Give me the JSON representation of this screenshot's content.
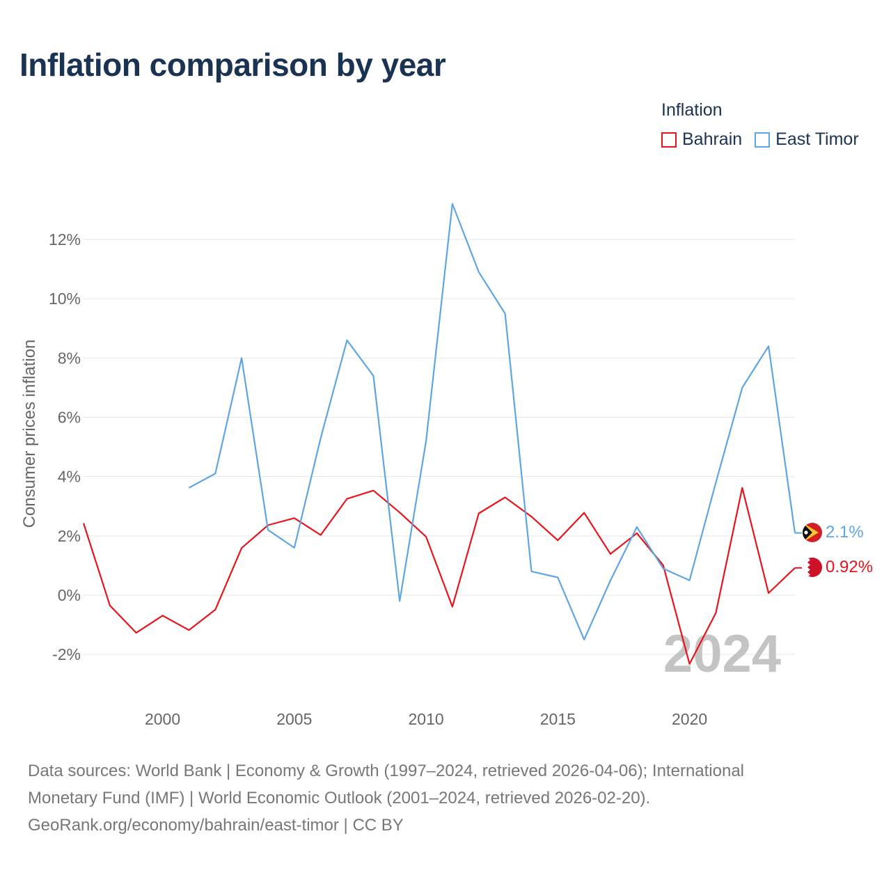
{
  "title": "Inflation comparison by year",
  "legend": {
    "title": "Inflation",
    "items": [
      {
        "name": "Bahrain",
        "color": "#e8141b"
      },
      {
        "name": "East Timor",
        "color": "#5ea5e3"
      }
    ]
  },
  "year_watermark": "2024",
  "footer": {
    "line1": "Data sources: World Bank | Economy & Growth (1997–2024, retrieved 2026-04-06); International",
    "line2": "Monetary Fund (IMF) | World Economic Outlook (2001–2024, retrieved 2026-02-20).",
    "line3": "GeoRank.org/economy/bahrain/east-timor | CC BY"
  },
  "chart_data": {
    "type": "line",
    "title": "Inflation comparison by year",
    "xlabel": "",
    "ylabel": "Consumer prices inflation",
    "xlim": [
      1997,
      2024
    ],
    "ylim": [
      -3,
      14
    ],
    "x_ticks": [
      2000,
      2005,
      2010,
      2015,
      2020
    ],
    "x_tick_labels": [
      "2000",
      "2005",
      "2010",
      "2015",
      "2020"
    ],
    "y_ticks": [
      -2,
      0,
      2,
      4,
      6,
      8,
      10,
      12
    ],
    "y_tick_labels": [
      "-2%",
      "0%",
      "2%",
      "4%",
      "6%",
      "8%",
      "10%",
      "12%"
    ],
    "grid": true,
    "legend_position": "top-right",
    "series": [
      {
        "name": "Bahrain",
        "color": "#e8141b",
        "end_label": "0.92%",
        "points": [
          [
            1997,
            2.43
          ],
          [
            1998,
            -0.35
          ],
          [
            1999,
            -1.27
          ],
          [
            2000,
            -0.69
          ],
          [
            2001,
            -1.18
          ],
          [
            2002,
            -0.49
          ],
          [
            2003,
            1.59
          ],
          [
            2004,
            2.36
          ],
          [
            2005,
            2.6
          ],
          [
            2006,
            2.03
          ],
          [
            2007,
            3.25
          ],
          [
            2008,
            3.53
          ],
          [
            2009,
            2.79
          ],
          [
            2010,
            1.97
          ],
          [
            2011,
            -0.39
          ],
          [
            2012,
            2.76
          ],
          [
            2013,
            3.3
          ],
          [
            2014,
            2.65
          ],
          [
            2015,
            1.85
          ],
          [
            2016,
            2.78
          ],
          [
            2017,
            1.39
          ],
          [
            2018,
            2.09
          ],
          [
            2019,
            1.01
          ],
          [
            2020,
            -2.32
          ],
          [
            2021,
            -0.6
          ],
          [
            2022,
            3.62
          ],
          [
            2023,
            0.07
          ],
          [
            2024,
            0.92
          ]
        ]
      },
      {
        "name": "East Timor",
        "color": "#5ea5e3",
        "end_label": "2.1%",
        "points": [
          [
            2001,
            3.62
          ],
          [
            2002,
            4.1
          ],
          [
            2003,
            8.0
          ],
          [
            2004,
            2.2
          ],
          [
            2005,
            1.6
          ],
          [
            2006,
            5.3
          ],
          [
            2007,
            8.6
          ],
          [
            2008,
            7.4
          ],
          [
            2009,
            -0.2
          ],
          [
            2010,
            5.2
          ],
          [
            2011,
            13.2
          ],
          [
            2012,
            10.9
          ],
          [
            2013,
            9.5
          ],
          [
            2014,
            0.8
          ],
          [
            2015,
            0.6
          ],
          [
            2016,
            -1.5
          ],
          [
            2017,
            0.5
          ],
          [
            2018,
            2.3
          ],
          [
            2019,
            0.9
          ],
          [
            2020,
            0.5
          ],
          [
            2021,
            3.8
          ],
          [
            2022,
            7.0
          ],
          [
            2023,
            8.4
          ],
          [
            2024,
            2.1
          ]
        ]
      }
    ]
  }
}
